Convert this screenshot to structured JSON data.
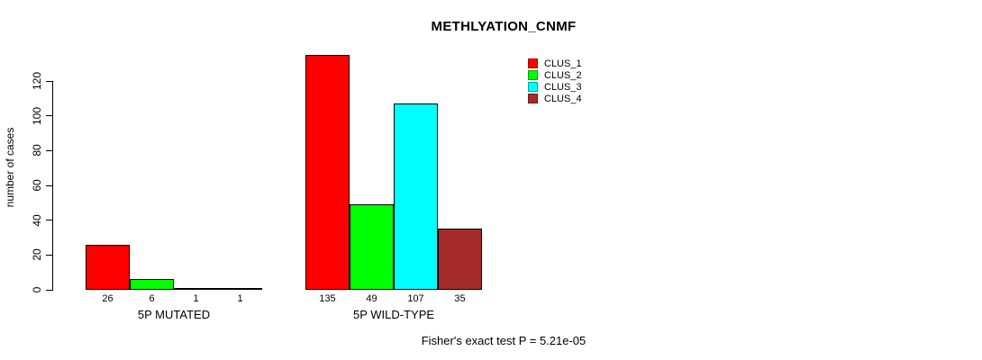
{
  "chart_data": {
    "type": "bar",
    "title": "METHLYATION_CNMF",
    "ylabel": "number of cases",
    "xlabel": "",
    "groups": [
      "5P MUTATED",
      "5P WILD-TYPE"
    ],
    "series": [
      {
        "name": "CLUS_1",
        "color": "#ff0000",
        "values": [
          26,
          135
        ]
      },
      {
        "name": "CLUS_2",
        "color": "#00ff00",
        "values": [
          6,
          49
        ]
      },
      {
        "name": "CLUS_3",
        "color": "#00ffff",
        "values": [
          1,
          107
        ]
      },
      {
        "name": "CLUS_4",
        "color": "#a52a2a",
        "values": [
          1,
          35
        ]
      }
    ],
    "bar_value_labels": [
      [
        26,
        6,
        1,
        1
      ],
      [
        135,
        49,
        107,
        35
      ]
    ],
    "yticks": [
      0,
      20,
      40,
      60,
      80,
      100,
      120
    ],
    "ylim": [
      0,
      140
    ],
    "grid": false,
    "legend_position": "top-right",
    "annotation": "Fisher's exact test P = 5.21e-05"
  }
}
